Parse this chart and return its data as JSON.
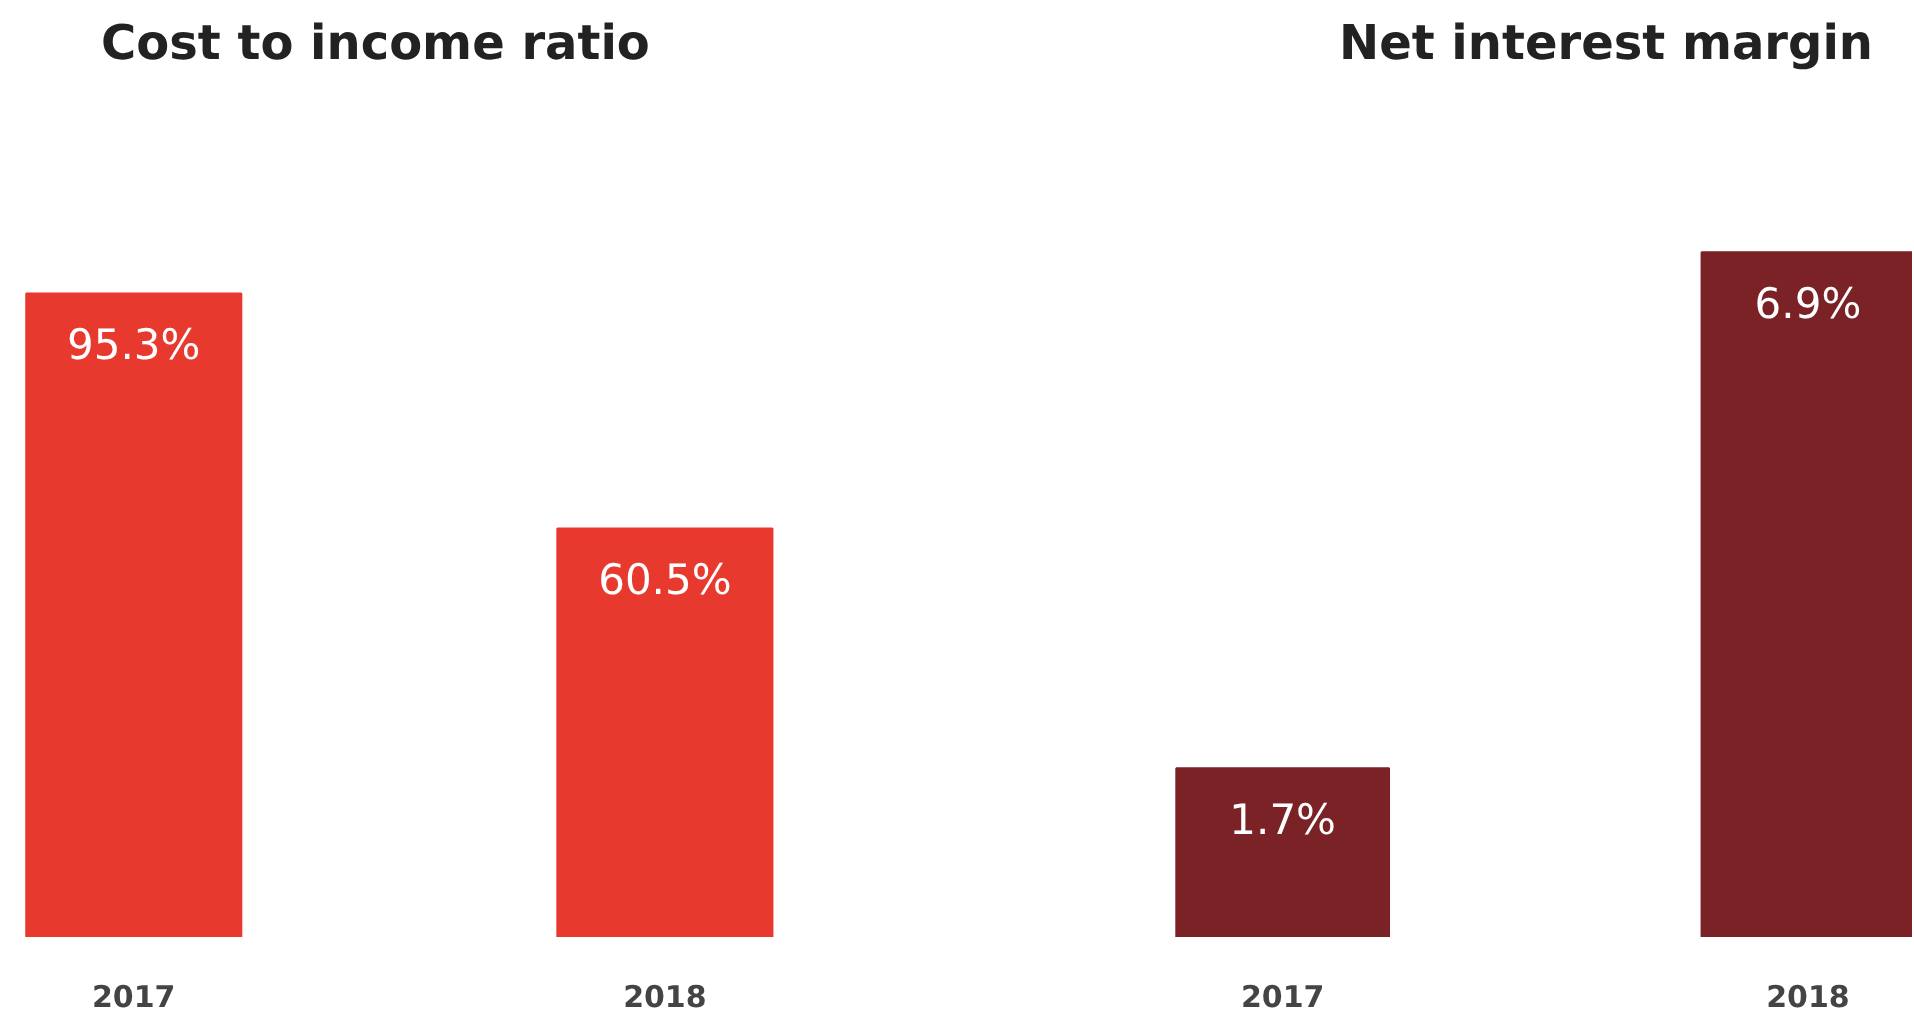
{
  "chart_data": [
    {
      "type": "bar",
      "title": "Cost to income ratio",
      "categories": [
        "2017",
        "2018"
      ],
      "values": [
        95.3,
        60.5
      ],
      "color": "#e8392f",
      "value_labels": [
        "95.3%",
        "60.5%"
      ]
    },
    {
      "type": "bar",
      "title": "Net interest margin",
      "categories": [
        "2017",
        "2018"
      ],
      "values": [
        1.7,
        6.9
      ],
      "color": "#7a2226",
      "value_labels": [
        "1.7%",
        "6.9%"
      ]
    }
  ]
}
